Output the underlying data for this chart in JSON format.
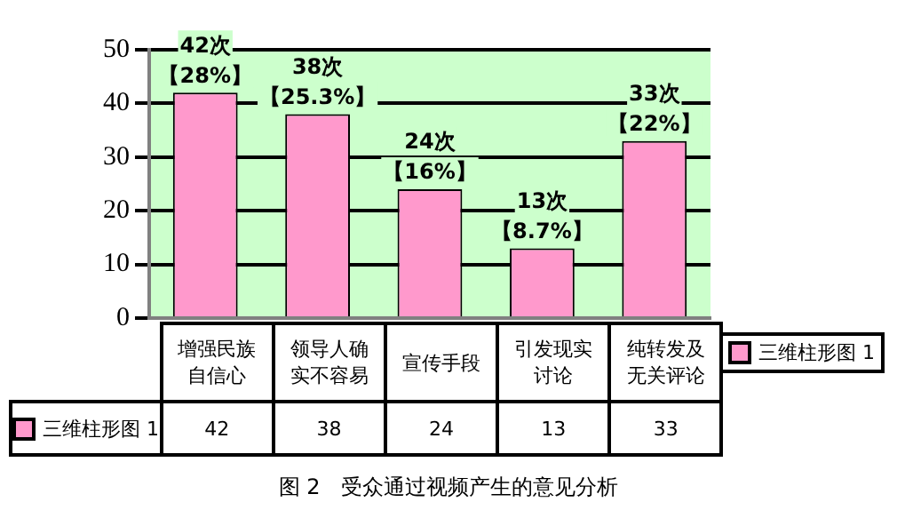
{
  "chart_data": {
    "type": "bar",
    "title": "图 2　受众通过视频产生的意见分析",
    "categories": [
      "增强民族自信心",
      "领导人确实不容易",
      "宣传手段",
      "引发现实讨论",
      "纯转发及无关评论"
    ],
    "series": [
      {
        "name": "三维柱形图 1",
        "color": "#ff99cc",
        "values": [
          42,
          38,
          24,
          13,
          33
        ]
      }
    ],
    "annotations": [
      {
        "text": "42次",
        "x": "增强民族自信心",
        "y": 42
      },
      {
        "text": "【28%】",
        "x": "增强民族自信心",
        "y": 42
      },
      {
        "text": "38次",
        "x": "领导人确实不容易",
        "y": 38
      },
      {
        "text": "【25.3%】",
        "x": "领导人确实不容易",
        "y": 38
      },
      {
        "text": "24次",
        "x": "宣传手段",
        "y": 24
      },
      {
        "text": "【16%】",
        "x": "宣传手段",
        "y": 24
      },
      {
        "text": "13次",
        "x": "引发现实讨论",
        "y": 13
      },
      {
        "text": "【8.7%】",
        "x": "引发现实讨论",
        "y": 13
      },
      {
        "text": "33次",
        "x": "纯转发及无关评论",
        "y": 33
      },
      {
        "text": "【22%】",
        "x": "纯转发及无关评论",
        "y": 33
      }
    ],
    "ylim": [
      0,
      50
    ],
    "yticks": [
      0,
      10,
      20,
      30,
      40,
      50
    ],
    "grid": "y",
    "legend": "right",
    "data_labels": true
  }
}
